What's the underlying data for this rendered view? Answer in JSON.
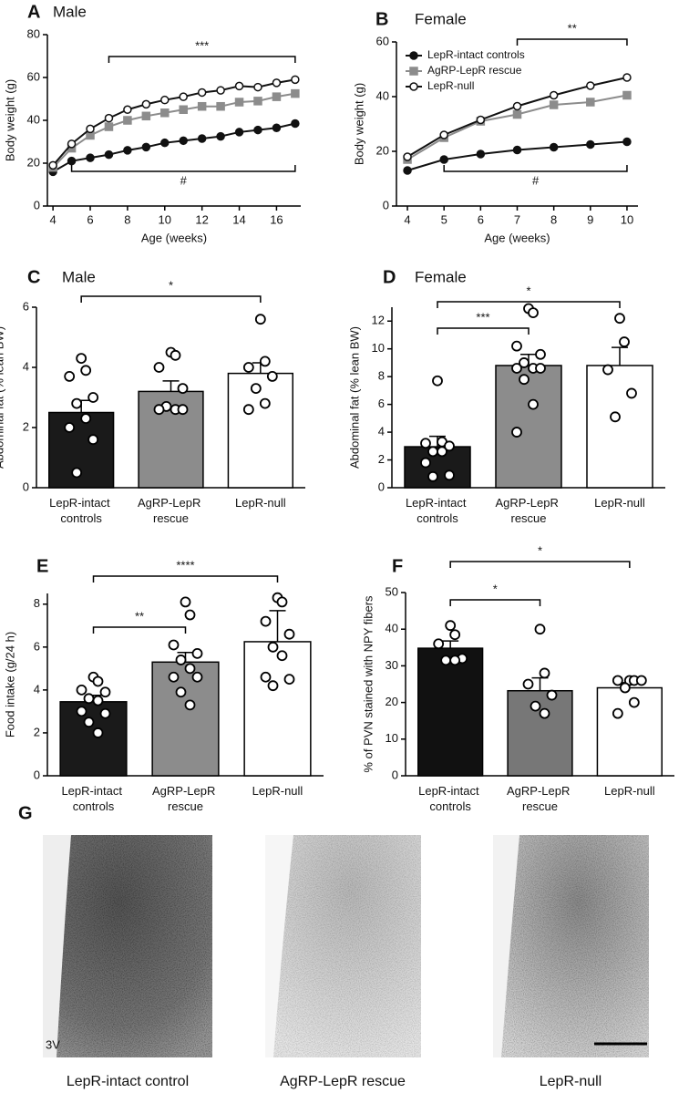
{
  "chart_data": [
    {
      "type": "line",
      "panel": "A",
      "title": "Male",
      "xlabel": "Age (weeks)",
      "ylabel": "Body weight (g)",
      "x": [
        4,
        5,
        6,
        7,
        8,
        9,
        10,
        11,
        12,
        13,
        14,
        15,
        16,
        17
      ],
      "xlim": [
        3.7,
        17.3
      ],
      "xticks": [
        4,
        6,
        8,
        10,
        12,
        14,
        16
      ],
      "ylim": [
        0,
        80
      ],
      "yticks": [
        0,
        20,
        40,
        60,
        80
      ],
      "series": [
        {
          "color": "#111111",
          "marker_fill": "#111111",
          "values": [
            16,
            21,
            22.5,
            24,
            26,
            27.5,
            29.5,
            30.5,
            31.5,
            32.5,
            34.5,
            35.5,
            36.5,
            38.5
          ]
        },
        {
          "color": "#8c8c8c",
          "marker_fill": "#8c8c8c",
          "values": [
            18,
            27,
            33,
            37,
            40,
            42,
            43.5,
            45,
            46.5,
            46.5,
            48.5,
            49,
            51,
            52.5
          ]
        },
        {
          "color": "#111111",
          "marker_fill": "#ffffff",
          "values": [
            19,
            29,
            36,
            41,
            45,
            47.5,
            49.5,
            51,
            53,
            54,
            56,
            55.5,
            57.5,
            59
          ]
        }
      ],
      "annotations": [
        {
          "label": "***",
          "x_range": [
            7,
            17
          ],
          "position": "above"
        },
        {
          "label": "#",
          "x_range": [
            5,
            17
          ],
          "position": "below"
        }
      ]
    },
    {
      "type": "line",
      "panel": "B",
      "title": "Female",
      "xlabel": "Age (weeks)",
      "ylabel": "Body weight (g)",
      "x": [
        4,
        5,
        6,
        7,
        8,
        9,
        10
      ],
      "xlim": [
        3.7,
        10.3
      ],
      "xticks": [
        4,
        5,
        6,
        7,
        8,
        9,
        10
      ],
      "ylim": [
        0,
        60
      ],
      "yticks": [
        0,
        20,
        40,
        60
      ],
      "legend": "upper left",
      "series": [
        {
          "name": "LepR-intact controls",
          "color": "#111111",
          "marker_fill": "#111111",
          "values": [
            13,
            17,
            19,
            20.5,
            21.5,
            22.5,
            23.5
          ]
        },
        {
          "name": "AgRP-LepR rescue",
          "color": "#8c8c8c",
          "marker_fill": "#8c8c8c",
          "values": [
            17,
            25,
            31,
            33.5,
            37,
            38,
            40.5
          ]
        },
        {
          "name": "LepR-null",
          "color": "#111111",
          "marker_fill": "#ffffff",
          "values": [
            18,
            26,
            31.5,
            36.5,
            40.5,
            44,
            47
          ]
        }
      ],
      "annotations": [
        {
          "label": "**",
          "x_range": [
            7,
            10
          ],
          "position": "above"
        },
        {
          "label": "#",
          "x_range": [
            5,
            10
          ],
          "position": "below"
        }
      ]
    },
    {
      "type": "bar",
      "panel": "C",
      "title": "Male",
      "ylabel": "Abdominal fat (% lean BW)",
      "categories": [
        "LepR-intact controls",
        "AgRP-LepR rescue",
        "LepR-null"
      ],
      "colors": [
        "#1a1a1a",
        "#8c8c8c",
        "#ffffff"
      ],
      "values": [
        2.5,
        3.2,
        3.8
      ],
      "errors": [
        0.4,
        0.35,
        0.35
      ],
      "points": [
        [
          4.3,
          3.9,
          3.7,
          3.0,
          2.8,
          2.3,
          2.0,
          1.6,
          0.5
        ],
        [
          4.5,
          4.4,
          4.0,
          3.3,
          2.7,
          2.6,
          2.6,
          2.6
        ],
        [
          5.6,
          4.2,
          4.0,
          3.7,
          3.3,
          2.8,
          2.6
        ]
      ],
      "ylim": [
        0,
        6
      ],
      "yticks": [
        0,
        2,
        4,
        6
      ],
      "annotations": [
        {
          "label": "*",
          "between": [
            "LepR-intact controls",
            "LepR-null"
          ]
        }
      ]
    },
    {
      "type": "bar",
      "panel": "D",
      "title": "Female",
      "ylabel": "Abdominal fat (% lean BW)",
      "categories": [
        "LepR-intact controls",
        "AgRP-LepR rescue",
        "LepR-null"
      ],
      "colors": [
        "#1a1a1a",
        "#8c8c8c",
        "#ffffff"
      ],
      "values": [
        2.95,
        8.8,
        8.8
      ],
      "errors": [
        0.75,
        0.8,
        1.3
      ],
      "points": [
        [
          7.7,
          3.3,
          3.2,
          3.0,
          2.6,
          2.6,
          1.8,
          0.9,
          0.8
        ],
        [
          12.9,
          12.6,
          10.2,
          9.6,
          9.0,
          8.6,
          8.6,
          8.6,
          7.8,
          6.0,
          4.0
        ],
        [
          12.2,
          10.5,
          8.5,
          6.8,
          5.1
        ]
      ],
      "ylim": [
        0,
        13
      ],
      "yticks": [
        0,
        2,
        4,
        6,
        8,
        10,
        12
      ],
      "annotations": [
        {
          "label": "***",
          "between": [
            "LepR-intact controls",
            "AgRP-LepR rescue"
          ]
        },
        {
          "label": "*",
          "between": [
            "LepR-intact controls",
            "LepR-null"
          ]
        }
      ]
    },
    {
      "type": "bar",
      "panel": "E",
      "ylabel": "Food intake (g/24 h)",
      "categories": [
        "LepR-intact controls",
        "AgRP-LepR rescue",
        "LepR-null"
      ],
      "colors": [
        "#1a1a1a",
        "#8c8c8c",
        "#ffffff"
      ],
      "values": [
        3.45,
        5.3,
        6.25
      ],
      "errors": [
        0.3,
        0.45,
        1.45
      ],
      "points": [
        [
          4.6,
          4.4,
          4.0,
          3.9,
          3.6,
          3.5,
          3.0,
          2.9,
          2.5,
          2.0
        ],
        [
          8.1,
          7.5,
          6.1,
          5.7,
          5.4,
          5.0,
          4.6,
          4.6,
          3.9,
          3.3
        ],
        [
          8.3,
          8.1,
          7.2,
          6.6,
          6.0,
          5.6,
          4.6,
          4.5,
          4.2
        ]
      ],
      "ylim": [
        0,
        8.5
      ],
      "yticks": [
        0,
        2,
        4,
        6,
        8
      ],
      "annotations": [
        {
          "label": "**",
          "between": [
            "LepR-intact controls",
            "AgRP-LepR rescue"
          ]
        },
        {
          "label": "****",
          "between": [
            "LepR-intact controls",
            "LepR-null"
          ]
        }
      ]
    },
    {
      "type": "bar",
      "panel": "F",
      "ylabel": "% of PVN stained with NPY fibers",
      "categories": [
        "LepR-intact controls",
        "AgRP-LepR rescue",
        "LepR-null"
      ],
      "colors": [
        "#111111",
        "#777777",
        "#ffffff"
      ],
      "values": [
        34.8,
        23.2,
        24
      ],
      "errors": [
        2,
        3.5,
        1.4
      ],
      "points": [
        [
          41,
          38.5,
          36,
          32,
          31.5,
          31.5
        ],
        [
          40,
          28,
          25,
          22,
          19,
          17
        ],
        [
          26,
          26,
          26,
          26,
          24,
          20,
          17
        ]
      ],
      "ylim": [
        0,
        50
      ],
      "yticks": [
        0,
        10,
        20,
        30,
        40,
        50
      ],
      "annotations": [
        {
          "label": "*",
          "between": [
            "LepR-intact controls",
            "AgRP-LepR rescue"
          ]
        },
        {
          "label": "*",
          "between": [
            "LepR-intact controls",
            "LepR-null"
          ]
        }
      ]
    }
  ],
  "micrographs": {
    "panel": "G",
    "annotation": "3V",
    "captions": [
      "LepR-intact control",
      "AgRP-LepR rescue",
      "LepR-null"
    ]
  }
}
